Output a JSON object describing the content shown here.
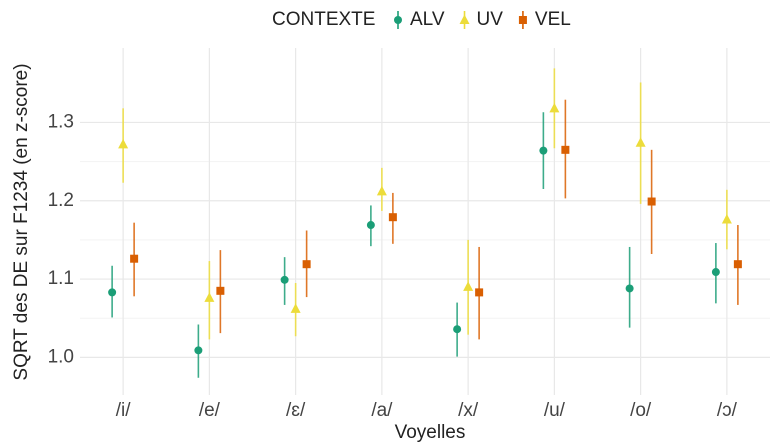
{
  "chart_data": {
    "type": "pointrange",
    "x_label": "Voyelles",
    "y_label": "SQRT des DE sur F1234 (en z-score)",
    "legend_title": "CONTEXTE",
    "legend": "top",
    "grid": true,
    "categories": [
      "/i/",
      "/e/",
      "/ɛ/",
      "/a/",
      "/x/",
      "/u/",
      "/o/",
      "/ɔ/"
    ],
    "ylim": [
      0.952,
      1.395
    ],
    "yticks": [
      {
        "value": 1,
        "label": "1.0"
      },
      1.1,
      1.2,
      1.3
    ],
    "series": [
      {
        "name": "ALV",
        "color": "#1b9e77",
        "marker": "circle",
        "values": [
          1.083,
          1.009,
          1.099,
          1.169,
          1.036,
          1.264,
          1.088,
          1.109
        ],
        "low": [
          1.051,
          0.974,
          1.067,
          1.142,
          1.001,
          1.215,
          1.038,
          1.069
        ],
        "high": [
          1.117,
          1.042,
          1.128,
          1.194,
          1.07,
          1.313,
          1.141,
          1.146
        ]
      },
      {
        "name": "UV",
        "color": "#ecdc3a",
        "marker": "triangle",
        "values": [
          1.272,
          1.076,
          1.062,
          1.212,
          1.09,
          1.318,
          1.274,
          1.176
        ],
        "low": [
          1.223,
          1.023,
          1.027,
          1.187,
          1.029,
          1.267,
          1.196,
          1.138
        ],
        "high": [
          1.318,
          1.123,
          1.095,
          1.242,
          1.15,
          1.369,
          1.351,
          1.214
        ]
      },
      {
        "name": "VEL",
        "color": "#d95f02",
        "marker": "square",
        "values": [
          1.126,
          1.085,
          1.119,
          1.179,
          1.083,
          1.265,
          1.199,
          1.119
        ],
        "low": [
          1.078,
          1.031,
          1.077,
          1.145,
          1.023,
          1.203,
          1.132,
          1.067
        ],
        "high": [
          1.172,
          1.137,
          1.162,
          1.21,
          1.141,
          1.329,
          1.265,
          1.169
        ]
      }
    ]
  }
}
